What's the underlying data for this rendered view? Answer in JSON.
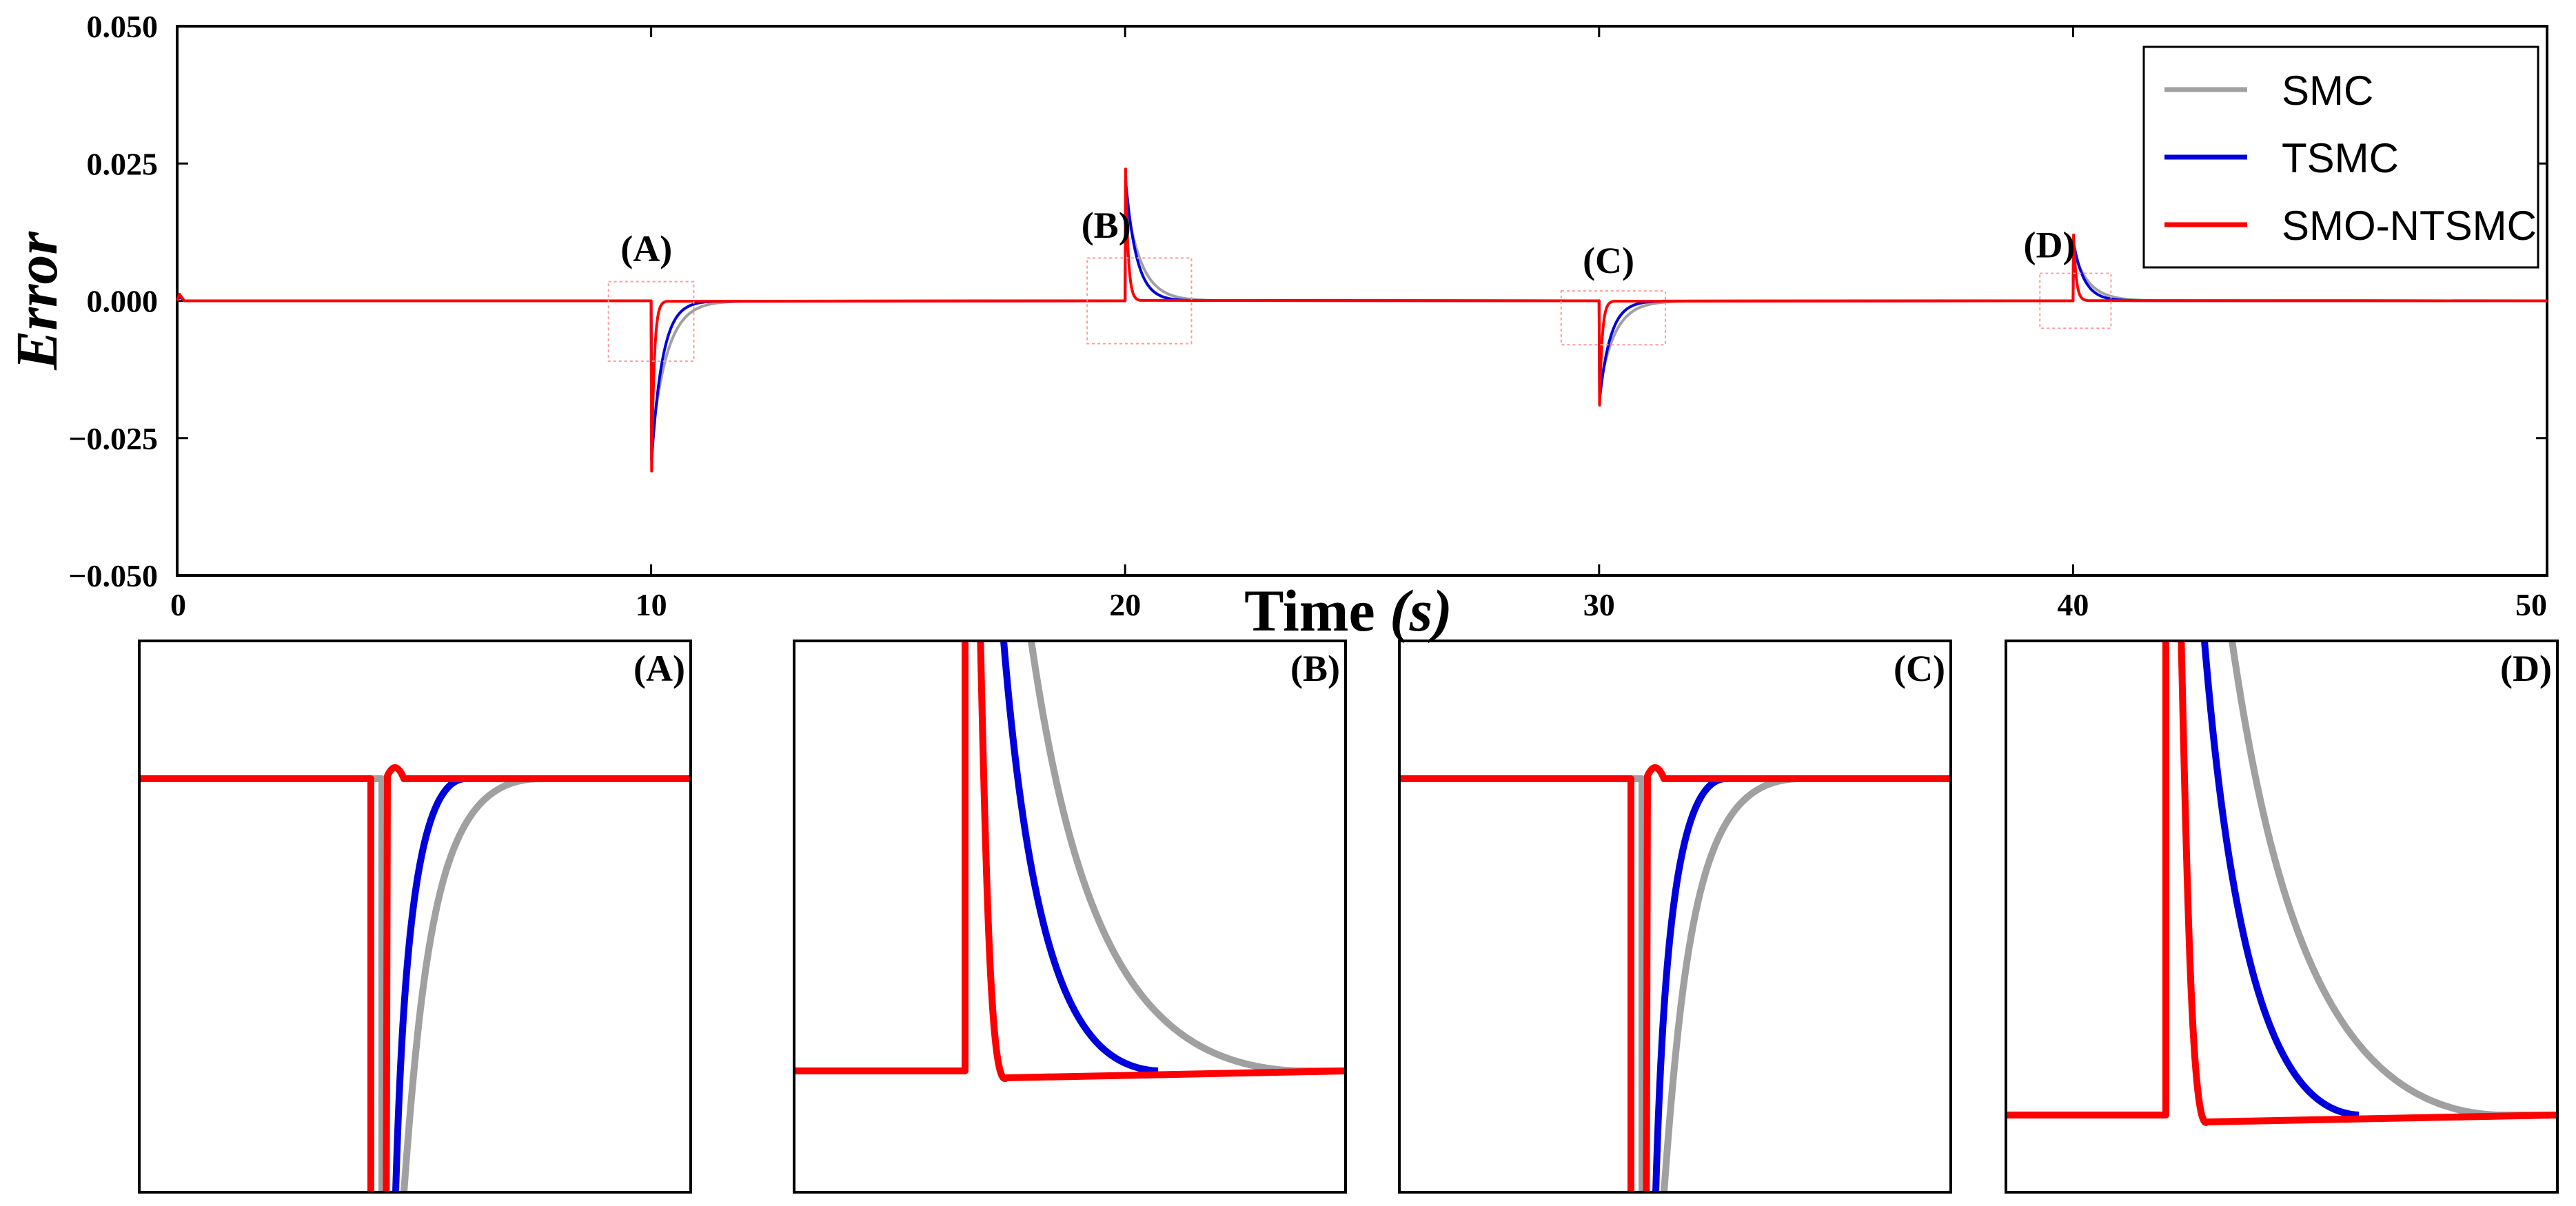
{
  "chart_data": {
    "type": "line",
    "main": {
      "ylabel": "Error",
      "xlabel_text": "Time ",
      "xlabel_unit": "(s)",
      "xlim": [
        0,
        50
      ],
      "ylim": [
        -0.05,
        0.05
      ],
      "xticks": [
        "0",
        "10",
        "20",
        "30",
        "40",
        "50"
      ],
      "yticks": [
        "0.050",
        "0.025",
        "0.000",
        "−0.025",
        "−0.050"
      ],
      "legend": [
        {
          "name": "SMC",
          "color": "#a0a0a0"
        },
        {
          "name": "TSMC",
          "color": "#0000dd"
        },
        {
          "name": "SMO-NTSMC",
          "color": "#ff0000"
        }
      ],
      "disturbances": [
        {
          "label": "(A)",
          "t": 10,
          "peaks": {
            "SMC": -0.026,
            "TSMC": -0.029,
            "SMO-NTSMC": -0.031
          }
        },
        {
          "label": "(B)",
          "t": 20,
          "peaks": {
            "SMC": 0.019,
            "TSMC": 0.022,
            "SMO-NTSMC": 0.024
          }
        },
        {
          "label": "(C)",
          "t": 30,
          "peaks": {
            "SMC": -0.016,
            "TSMC": -0.018,
            "SMO-NTSMC": -0.019
          }
        },
        {
          "label": "(D)",
          "t": 40,
          "peaks": {
            "SMC": 0.009,
            "TSMC": 0.0105,
            "SMO-NTSMC": 0.012
          }
        }
      ],
      "settling_times": {
        "SMC": 0.6,
        "TSMC": 0.42,
        "SMO-NTSMC": 0.1
      },
      "colors": {
        "SMC": "#a0a0a0",
        "TSMC": "#0000dd",
        "SMO-NTSMC": "#ff0000",
        "zoom_box": "#ff9999"
      }
    },
    "insets": [
      {
        "label": "(A)"
      },
      {
        "label": "(B)"
      },
      {
        "label": "(C)"
      },
      {
        "label": "(D)"
      }
    ]
  }
}
